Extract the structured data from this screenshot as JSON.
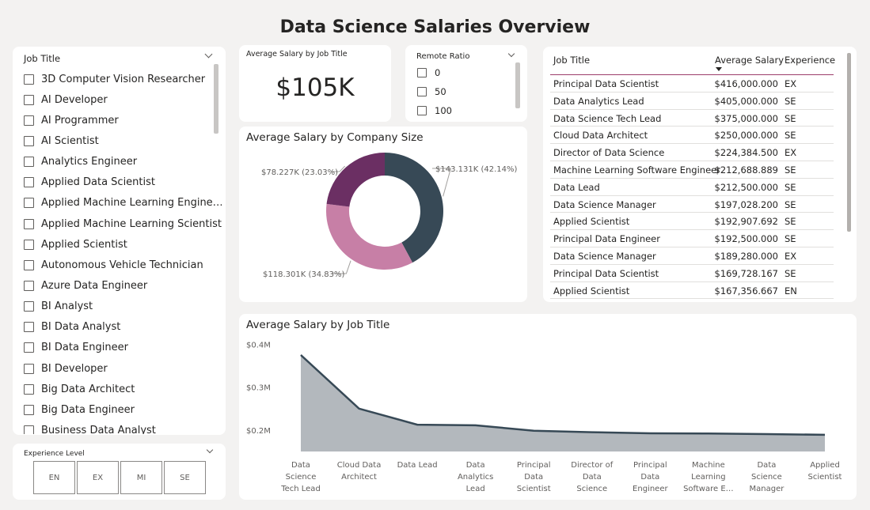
{
  "page": {
    "title": "Data Science Salaries Overview"
  },
  "job_title_slicer": {
    "header": "Job Title",
    "items": [
      "3D Computer Vision Researcher",
      "AI Developer",
      "AI Programmer",
      "AI Scientist",
      "Analytics Engineer",
      "Applied Data Scientist",
      "Applied Machine Learning Engine…",
      "Applied Machine Learning Scientist",
      "Applied Scientist",
      "Autonomous Vehicle Technician",
      "Azure Data Engineer",
      "BI Analyst",
      "BI Data Analyst",
      "BI Data Engineer",
      "BI Developer",
      "Big Data Architect",
      "Big Data Engineer",
      "Business Data Analyst"
    ]
  },
  "experience_slicer": {
    "header": "Experience Level",
    "options": [
      "EN",
      "EX",
      "MI",
      "SE"
    ]
  },
  "kpi": {
    "label": "Average Salary by Job Title",
    "value": "$105K"
  },
  "remote_slicer": {
    "header": "Remote Ratio",
    "options": [
      "0",
      "50",
      "100"
    ]
  },
  "salary_table": {
    "columns": [
      "Job Title",
      "Average Salary",
      "Experience"
    ],
    "rows": [
      [
        "Principal Data Scientist",
        "$416,000.000",
        "EX"
      ],
      [
        "Data Analytics Lead",
        "$405,000.000",
        "SE"
      ],
      [
        "Data Science Tech Lead",
        "$375,000.000",
        "SE"
      ],
      [
        "Cloud Data Architect",
        "$250,000.000",
        "SE"
      ],
      [
        "Director of Data Science",
        "$224,384.500",
        "EX"
      ],
      [
        "Machine Learning Software Engineer",
        "$212,688.889",
        "SE"
      ],
      [
        "Data Lead",
        "$212,500.000",
        "SE"
      ],
      [
        "Data Science Manager",
        "$197,028.200",
        "SE"
      ],
      [
        "Applied Scientist",
        "$192,907.692",
        "SE"
      ],
      [
        "Principal Data Engineer",
        "$192,500.000",
        "SE"
      ],
      [
        "Data Science Manager",
        "$189,280.000",
        "EX"
      ],
      [
        "Principal Data Scientist",
        "$169,728.167",
        "SE"
      ],
      [
        "Applied Scientist",
        "$167,356.667",
        "EN"
      ]
    ]
  },
  "chart_data": [
    {
      "type": "pie",
      "variant": "donut",
      "title": "Average Salary by Company Size",
      "slices": [
        {
          "value": 143.131,
          "percent": 42.14,
          "label": "$143.131K (42.14%)",
          "color": "#374956"
        },
        {
          "value": 118.301,
          "percent": 34.83,
          "label": "$118.301K (34.83%)",
          "color": "#c77fa6"
        },
        {
          "value": 78.227,
          "percent": 23.03,
          "label": "$78.227K (23.03%)",
          "color": "#6b2f63"
        }
      ]
    },
    {
      "type": "area",
      "title": "Average Salary by Job Title",
      "categories": [
        "Data Science Tech Lead",
        "Cloud Data Architect",
        "Data Lead",
        "Data Analytics Lead",
        "Principal Data Scientist",
        "Director of Data Science",
        "Principal Data Engineer",
        "Machine Learning Software E…",
        "Data Science Manager",
        "Applied Scientist"
      ],
      "values": [
        375000,
        250000,
        212500,
        211000,
        198500,
        195000,
        192500,
        192000,
        190500,
        189000
      ],
      "y_ticks": [
        "$0.2M",
        "$0.3M",
        "$0.4M"
      ],
      "y_tick_values": [
        200000,
        300000,
        400000
      ],
      "ylim": [
        150000,
        410000
      ],
      "fill_color": "#b3b8bd",
      "line_color": "#374956"
    }
  ]
}
